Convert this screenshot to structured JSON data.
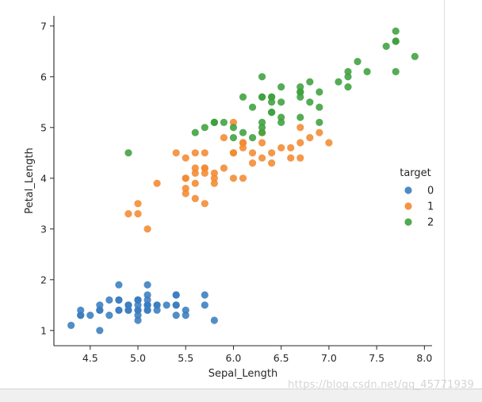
{
  "chart_data": {
    "type": "scatter",
    "title": "",
    "xlabel": "Sepal_Length",
    "ylabel": "Petal_Length",
    "xlim": [
      4.12,
      8.08
    ],
    "ylim": [
      0.7,
      7.2
    ],
    "xticks": [
      4.5,
      5.0,
      5.5,
      6.0,
      6.5,
      7.0,
      7.5,
      8.0
    ],
    "xtick_labels": [
      "4.5",
      "5.0",
      "5.5",
      "6.0",
      "6.5",
      "7.0",
      "7.5",
      "8.0"
    ],
    "yticks": [
      1,
      2,
      3,
      4,
      5,
      6,
      7
    ],
    "ytick_labels": [
      "1",
      "2",
      "3",
      "4",
      "5",
      "6",
      "7"
    ],
    "grid": false,
    "legend": {
      "title": "target",
      "placement": "right",
      "entries": [
        "0",
        "1",
        "2"
      ]
    },
    "series": [
      {
        "name": "0",
        "color": "#3a7dbf",
        "points": [
          [
            5.1,
            1.4
          ],
          [
            4.9,
            1.4
          ],
          [
            4.7,
            1.3
          ],
          [
            4.6,
            1.5
          ],
          [
            5.0,
            1.4
          ],
          [
            5.4,
            1.7
          ],
          [
            4.6,
            1.4
          ],
          [
            5.0,
            1.5
          ],
          [
            4.4,
            1.4
          ],
          [
            4.9,
            1.5
          ],
          [
            5.4,
            1.5
          ],
          [
            4.8,
            1.6
          ],
          [
            4.8,
            1.4
          ],
          [
            4.3,
            1.1
          ],
          [
            5.8,
            1.2
          ],
          [
            5.7,
            1.5
          ],
          [
            5.4,
            1.3
          ],
          [
            5.1,
            1.4
          ],
          [
            5.7,
            1.7
          ],
          [
            5.1,
            1.5
          ],
          [
            5.4,
            1.7
          ],
          [
            5.1,
            1.5
          ],
          [
            4.6,
            1.0
          ],
          [
            5.1,
            1.7
          ],
          [
            4.8,
            1.9
          ],
          [
            5.0,
            1.6
          ],
          [
            5.0,
            1.6
          ],
          [
            5.2,
            1.5
          ],
          [
            5.2,
            1.4
          ],
          [
            4.7,
            1.6
          ],
          [
            4.8,
            1.6
          ],
          [
            5.4,
            1.5
          ],
          [
            5.2,
            1.5
          ],
          [
            5.5,
            1.4
          ],
          [
            4.9,
            1.5
          ],
          [
            5.0,
            1.2
          ],
          [
            5.5,
            1.3
          ],
          [
            4.9,
            1.4
          ],
          [
            4.4,
            1.3
          ],
          [
            5.1,
            1.5
          ],
          [
            5.0,
            1.3
          ],
          [
            4.5,
            1.3
          ],
          [
            4.4,
            1.3
          ],
          [
            5.0,
            1.6
          ],
          [
            5.1,
            1.9
          ],
          [
            4.8,
            1.4
          ],
          [
            5.1,
            1.6
          ],
          [
            4.6,
            1.4
          ],
          [
            5.3,
            1.5
          ],
          [
            5.0,
            1.4
          ]
        ]
      },
      {
        "name": "1",
        "color": "#f28a30",
        "points": [
          [
            7.0,
            4.7
          ],
          [
            6.4,
            4.5
          ],
          [
            6.9,
            4.9
          ],
          [
            5.5,
            4.0
          ],
          [
            6.5,
            4.6
          ],
          [
            5.7,
            4.5
          ],
          [
            6.3,
            4.7
          ],
          [
            4.9,
            3.3
          ],
          [
            6.6,
            4.6
          ],
          [
            5.2,
            3.9
          ],
          [
            5.0,
            3.5
          ],
          [
            5.9,
            4.2
          ],
          [
            6.0,
            4.0
          ],
          [
            6.1,
            4.7
          ],
          [
            5.6,
            3.6
          ],
          [
            6.7,
            4.4
          ],
          [
            5.6,
            4.5
          ],
          [
            5.8,
            4.1
          ],
          [
            6.2,
            4.5
          ],
          [
            5.6,
            3.9
          ],
          [
            5.9,
            4.8
          ],
          [
            6.1,
            4.0
          ],
          [
            6.3,
            4.9
          ],
          [
            6.1,
            4.7
          ],
          [
            6.4,
            4.3
          ],
          [
            6.6,
            4.4
          ],
          [
            6.8,
            4.8
          ],
          [
            6.7,
            5.0
          ],
          [
            6.0,
            4.5
          ],
          [
            5.7,
            3.5
          ],
          [
            5.5,
            3.8
          ],
          [
            5.5,
            3.7
          ],
          [
            5.8,
            3.9
          ],
          [
            6.0,
            5.1
          ],
          [
            5.4,
            4.5
          ],
          [
            6.0,
            4.5
          ],
          [
            6.7,
            4.7
          ],
          [
            6.3,
            4.4
          ],
          [
            5.6,
            4.1
          ],
          [
            5.5,
            4.0
          ],
          [
            5.5,
            4.4
          ],
          [
            6.1,
            4.6
          ],
          [
            5.8,
            4.0
          ],
          [
            5.0,
            3.3
          ],
          [
            5.6,
            4.2
          ],
          [
            5.7,
            4.2
          ],
          [
            5.7,
            4.2
          ],
          [
            6.2,
            4.3
          ],
          [
            5.1,
            3.0
          ],
          [
            5.7,
            4.1
          ]
        ]
      },
      {
        "name": "2",
        "color": "#3ea03e",
        "points": [
          [
            6.3,
            6.0
          ],
          [
            5.8,
            5.1
          ],
          [
            7.1,
            5.9
          ],
          [
            6.3,
            5.6
          ],
          [
            6.5,
            5.8
          ],
          [
            7.6,
            6.6
          ],
          [
            4.9,
            4.5
          ],
          [
            7.3,
            6.3
          ],
          [
            6.7,
            5.8
          ],
          [
            7.2,
            6.1
          ],
          [
            6.5,
            5.1
          ],
          [
            6.4,
            5.3
          ],
          [
            6.8,
            5.5
          ],
          [
            5.7,
            5.0
          ],
          [
            5.8,
            5.1
          ],
          [
            6.4,
            5.3
          ],
          [
            6.5,
            5.5
          ],
          [
            7.7,
            6.7
          ],
          [
            7.7,
            6.9
          ],
          [
            6.0,
            5.0
          ],
          [
            6.9,
            5.7
          ],
          [
            5.6,
            4.9
          ],
          [
            7.7,
            6.7
          ],
          [
            6.3,
            4.9
          ],
          [
            6.7,
            5.7
          ],
          [
            7.2,
            6.0
          ],
          [
            6.2,
            4.8
          ],
          [
            6.1,
            4.9
          ],
          [
            6.4,
            5.6
          ],
          [
            7.2,
            5.8
          ],
          [
            7.4,
            6.1
          ],
          [
            7.9,
            6.4
          ],
          [
            6.4,
            5.6
          ],
          [
            6.3,
            5.1
          ],
          [
            6.1,
            5.6
          ],
          [
            7.7,
            6.1
          ],
          [
            6.3,
            5.6
          ],
          [
            6.4,
            5.5
          ],
          [
            6.0,
            4.8
          ],
          [
            6.9,
            5.4
          ],
          [
            6.7,
            5.6
          ],
          [
            6.9,
            5.1
          ],
          [
            5.8,
            5.1
          ],
          [
            6.8,
            5.9
          ],
          [
            6.7,
            5.7
          ],
          [
            6.7,
            5.2
          ],
          [
            6.3,
            5.0
          ],
          [
            6.5,
            5.2
          ],
          [
            6.2,
            5.4
          ],
          [
            5.9,
            5.1
          ]
        ]
      }
    ]
  },
  "watermark": "https://blog.csdn.net/qq_45771939"
}
